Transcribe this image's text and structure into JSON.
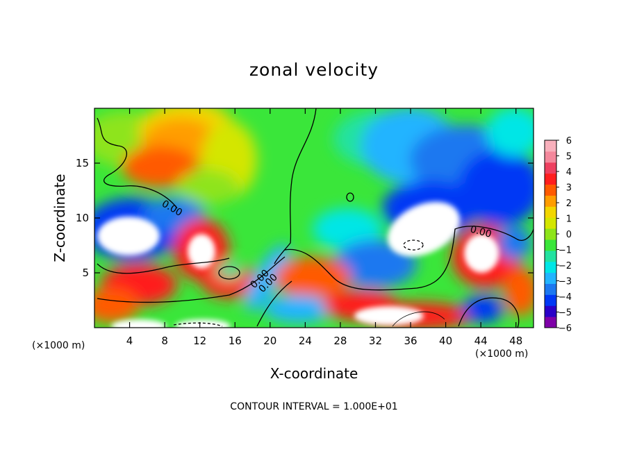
{
  "chart_data": {
    "type": "heatmap",
    "title": "zonal velocity",
    "xlabel": "X-coordinate",
    "ylabel": "Z-coordinate",
    "x_unit_label": "(×1000 m)",
    "x_ticks": [
      4,
      8,
      12,
      16,
      20,
      24,
      28,
      32,
      36,
      40,
      44,
      48
    ],
    "y_ticks": [
      5,
      10,
      15
    ],
    "xlim": [
      0,
      50
    ],
    "ylim": [
      0,
      20
    ],
    "colorbar": {
      "ticks": [
        6,
        5,
        4,
        3,
        2,
        1,
        0,
        -1,
        -2,
        -3,
        -4,
        -5,
        -6
      ],
      "range": [
        -6,
        6
      ],
      "colors": [
        "#7f00a8",
        "#2a00c8",
        "#0038f5",
        "#1c78f0",
        "#22b4ff",
        "#00e6e6",
        "#22e2a0",
        "#3ae63a",
        "#8ee41a",
        "#d4e600",
        "#f2d600",
        "#ff9d00",
        "#ff5a00",
        "#ff1e1e",
        "#ee4060",
        "#f4889c",
        "#f8b0bc"
      ]
    },
    "contour_label": "0.00",
    "contour_interval_text": "CONTOUR INTERVAL = 1.000E+01"
  }
}
